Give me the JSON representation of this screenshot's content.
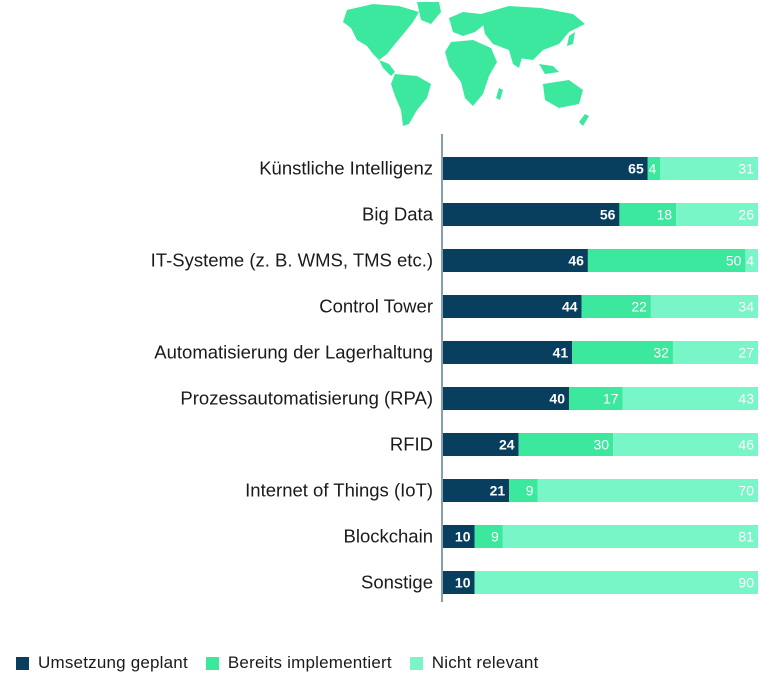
{
  "colors": {
    "planned": "#083f5e",
    "implemented": "#3ce79e",
    "not_relevant": "#79f6c7",
    "map": "#3ce79e",
    "axis": "#083f5e",
    "label_text": "#1a1a1a"
  },
  "map_icon": "world-map-icon",
  "legend": {
    "planned": "Umsetzung geplant",
    "implemented": "Bereits implementiert",
    "not_relevant": "Nicht relevant"
  },
  "chart_data": {
    "type": "bar",
    "orientation": "horizontal",
    "stacked": true,
    "categories": [
      "Künstliche Intelligenz",
      "Big Data",
      "IT-Systeme (z. B. WMS, TMS etc.)",
      "Control Tower",
      "Automatisierung der Lagerhaltung",
      "Prozessautomatisierung (RPA)",
      "RFID",
      "Internet of Things (IoT)",
      "Blockchain",
      "Sonstige"
    ],
    "series": [
      {
        "name": "Umsetzung geplant",
        "values": [
          65,
          56,
          46,
          44,
          41,
          40,
          24,
          21,
          10,
          10
        ]
      },
      {
        "name": "Bereits implementiert",
        "values": [
          4,
          18,
          50,
          22,
          32,
          17,
          30,
          9,
          9,
          0
        ]
      },
      {
        "name": "Nicht relevant",
        "values": [
          31,
          26,
          4,
          34,
          27,
          43,
          46,
          70,
          81,
          90
        ]
      }
    ],
    "xlim": [
      0,
      100
    ],
    "grid": false,
    "legend_position": "bottom-left"
  }
}
